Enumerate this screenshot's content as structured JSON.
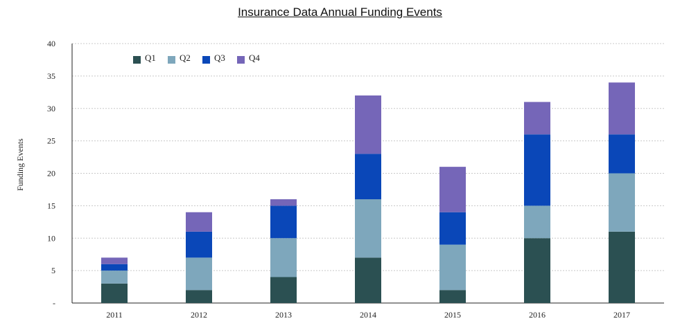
{
  "chart_data": {
    "type": "bar",
    "stacked": true,
    "title": "Insurance Data Annual Funding Events",
    "xlabel": "",
    "ylabel": "Funding Events",
    "ylim": [
      0,
      40
    ],
    "y_ticks": [
      {
        "value": 0,
        "label": "-"
      },
      {
        "value": 5,
        "label": "5"
      },
      {
        "value": 10,
        "label": "10"
      },
      {
        "value": 15,
        "label": "15"
      },
      {
        "value": 20,
        "label": "20"
      },
      {
        "value": 25,
        "label": "25"
      },
      {
        "value": 30,
        "label": "30"
      },
      {
        "value": 35,
        "label": "35"
      },
      {
        "value": 40,
        "label": "40"
      }
    ],
    "grid": true,
    "legend_position": "top-left",
    "categories": [
      "2011",
      "2012",
      "2013",
      "2014",
      "2015",
      "2016",
      "2017"
    ],
    "series": [
      {
        "name": "Q1",
        "color": "#2b5052",
        "values": [
          3,
          2,
          4,
          7,
          2,
          10,
          11
        ]
      },
      {
        "name": "Q2",
        "color": "#7ea7bc",
        "values": [
          2,
          5,
          6,
          9,
          7,
          5,
          9
        ]
      },
      {
        "name": "Q3",
        "color": "#0a47b8",
        "values": [
          1,
          4,
          5,
          7,
          5,
          11,
          6
        ]
      },
      {
        "name": "Q4",
        "color": "#7566b8",
        "values": [
          1,
          3,
          1,
          9,
          7,
          5,
          8
        ]
      }
    ]
  }
}
